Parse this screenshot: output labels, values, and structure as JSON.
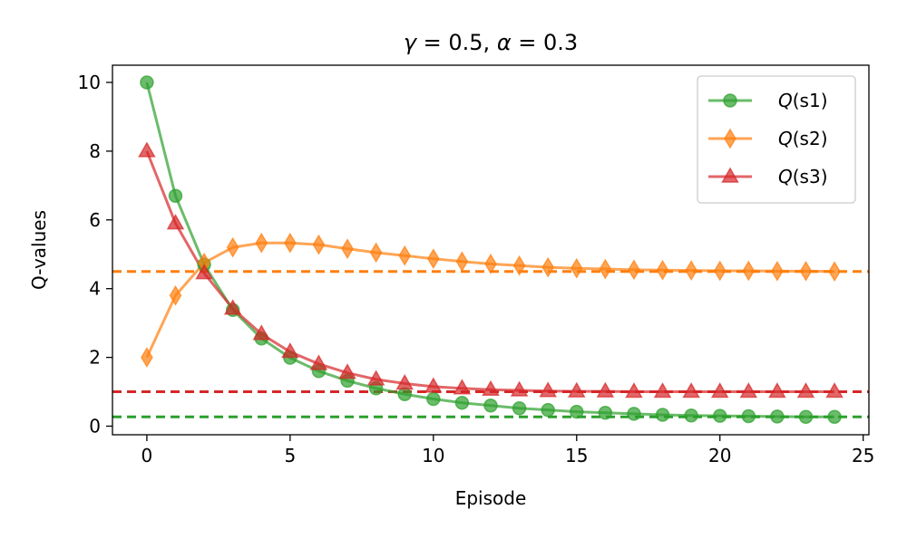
{
  "chart_data": {
    "type": "line",
    "title": "γ = 0.5, α = 0.3",
    "xlabel": "Episode",
    "ylabel": "Q-values",
    "xlim": [
      -1.2,
      25.2
    ],
    "ylim": [
      -0.25,
      10.5
    ],
    "xticks": [
      0,
      5,
      10,
      15,
      20,
      25
    ],
    "yticks": [
      0,
      2,
      4,
      6,
      8,
      10
    ],
    "grid": false,
    "legend_position": "top-right",
    "x": [
      0,
      1,
      2,
      3,
      4,
      5,
      6,
      7,
      8,
      9,
      10,
      11,
      12,
      13,
      14,
      15,
      16,
      17,
      18,
      19,
      20,
      21,
      22,
      23,
      24
    ],
    "series": [
      {
        "name": "Q(s1)",
        "color": "#2ca02c",
        "marker": "circle",
        "values": [
          10.0,
          6.7,
          4.7,
          3.38,
          2.55,
          1.99,
          1.6,
          1.32,
          1.1,
          0.93,
          0.79,
          0.68,
          0.6,
          0.52,
          0.47,
          0.42,
          0.39,
          0.36,
          0.33,
          0.31,
          0.3,
          0.29,
          0.28,
          0.27,
          0.27
        ]
      },
      {
        "name": "Q(s2)",
        "color": "#ff7f0e",
        "marker": "thin_diamond",
        "values": [
          2.0,
          3.8,
          4.75,
          5.2,
          5.33,
          5.33,
          5.28,
          5.16,
          5.05,
          4.96,
          4.87,
          4.79,
          4.72,
          4.67,
          4.62,
          4.59,
          4.57,
          4.55,
          4.54,
          4.53,
          4.52,
          4.52,
          4.51,
          4.51,
          4.5
        ]
      },
      {
        "name": "Q(s3)",
        "color": "#d62728",
        "marker": "triangle",
        "values": [
          8.0,
          5.9,
          4.45,
          3.42,
          2.68,
          2.16,
          1.81,
          1.55,
          1.36,
          1.24,
          1.15,
          1.1,
          1.06,
          1.04,
          1.02,
          1.01,
          1.01,
          1.0,
          1.0,
          1.0,
          1.0,
          1.0,
          1.0,
          1.0,
          1.0
        ]
      }
    ],
    "reference_lines": [
      {
        "y": 4.5,
        "color": "#ff7f0e",
        "style": "dashed"
      },
      {
        "y": 1.0,
        "color": "#d62728",
        "style": "dashed"
      },
      {
        "y": 0.27,
        "color": "#2ca02c",
        "style": "dashed"
      }
    ]
  },
  "legend": {
    "q": "Q",
    "s1": "(s1)",
    "s2": "(s2)",
    "s3": "(s3)"
  }
}
